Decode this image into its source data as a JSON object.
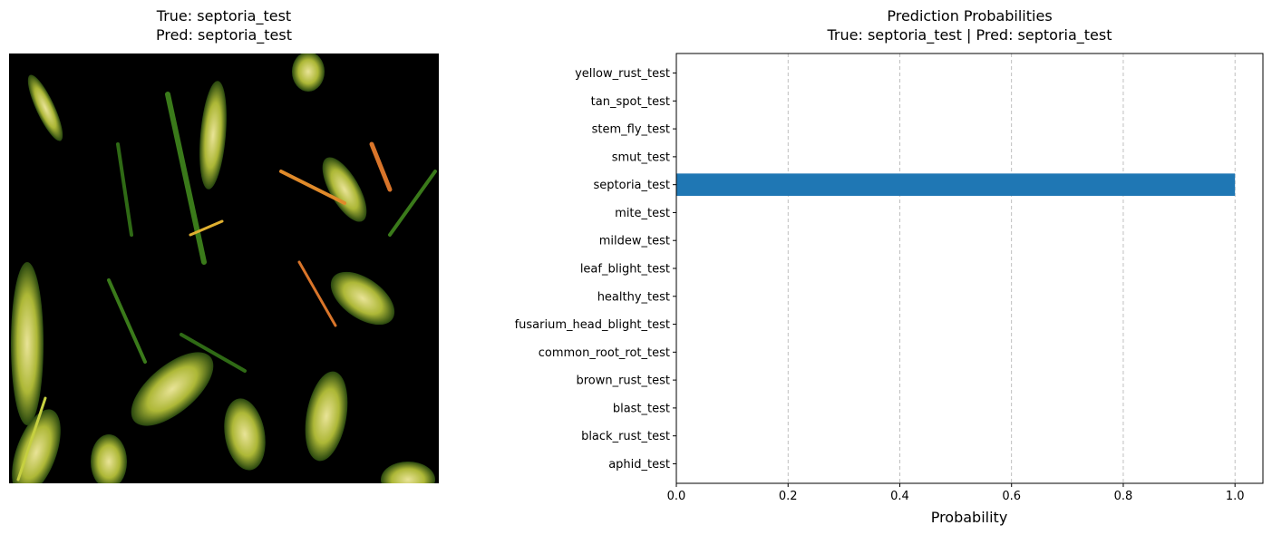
{
  "image_panel": {
    "title_line1": "True: septoria_test",
    "title_line2": "Pred: septoria_test"
  },
  "chart_data": {
    "type": "bar",
    "orientation": "horizontal",
    "title": "Prediction Probabilities",
    "subtitle": "True: septoria_test | Pred: septoria_test",
    "xlabel": "Probability",
    "ylabel": "",
    "xlim": [
      0,
      1.05
    ],
    "xticks": [
      "0.0",
      "0.2",
      "0.4",
      "0.6",
      "0.8",
      "1.0"
    ],
    "xtick_values": [
      0,
      0.2,
      0.4,
      0.6,
      0.8,
      1.0
    ],
    "grid": "x, dashed",
    "categories": [
      "aphid_test",
      "black_rust_test",
      "blast_test",
      "brown_rust_test",
      "common_root_rot_test",
      "fusarium_head_blight_test",
      "healthy_test",
      "leaf_blight_test",
      "mildew_test",
      "mite_test",
      "septoria_test",
      "smut_test",
      "stem_fly_test",
      "tan_spot_test",
      "yellow_rust_test"
    ],
    "values": [
      0,
      0,
      0,
      0,
      0,
      0,
      0,
      0,
      0,
      0,
      1.0,
      0,
      0,
      0,
      0
    ],
    "bar_color": "#1f77b4"
  }
}
